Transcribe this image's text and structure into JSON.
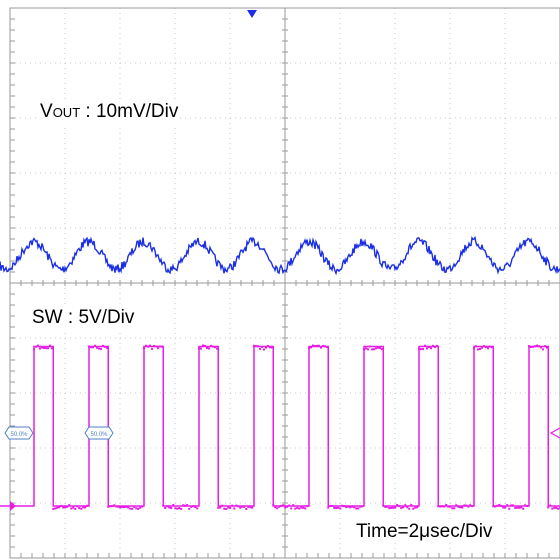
{
  "chart_data": {
    "type": "line",
    "traces": [
      {
        "name": "VOUT",
        "label_main": "V",
        "label_sub": "OUT",
        "label_rest": " : 10mV/Div",
        "color": "#1a2ee6",
        "shape": "sine",
        "periods": 10,
        "level_div": 4.5,
        "peak_to_peak_div": 0.5
      },
      {
        "name": "SW",
        "label": "SW : 5V/Div",
        "color": "#e61ee6",
        "shape": "square",
        "periods": 10,
        "duty": 0.35,
        "high_div": 2.9,
        "low_div": 0.0
      }
    ],
    "grid": {
      "divisions_x": 10,
      "divisions_y": 10,
      "minor_ticks": 5
    },
    "time_label": "Time=2μsec/Div",
    "markers": [
      "50.0%",
      "50.0%"
    ],
    "marker_color": "#4d7fc4",
    "grid_color": "#c8c8c8",
    "axis_color": "#9a9a9a"
  }
}
